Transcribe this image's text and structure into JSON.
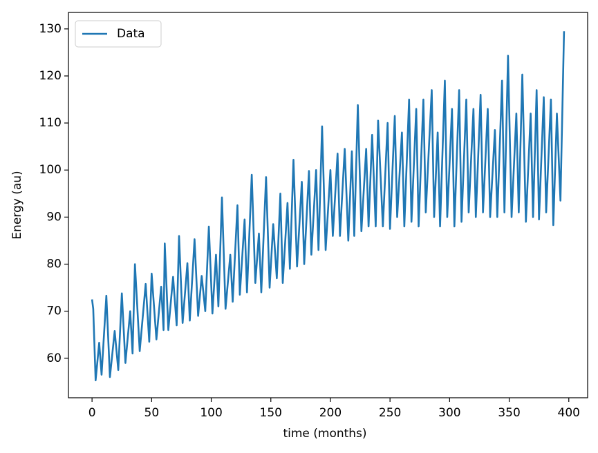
{
  "chart_data": {
    "type": "line",
    "xlabel": "time (months)",
    "ylabel": "Energy (au)",
    "x": [
      0,
      1,
      3,
      6,
      8,
      12,
      15,
      19,
      22,
      25,
      28,
      32,
      34,
      36,
      40,
      45,
      48,
      50,
      54,
      58,
      60,
      61,
      64,
      68,
      71,
      73,
      76,
      80,
      82,
      86,
      89,
      92,
      95,
      98,
      101,
      104,
      106,
      109,
      112,
      116,
      118,
      122,
      124,
      128,
      130,
      134,
      137,
      140,
      142,
      146,
      149,
      152,
      155,
      158,
      160,
      164,
      166,
      169,
      172,
      176,
      178,
      182,
      184,
      188,
      190,
      193,
      196,
      200,
      202,
      206,
      208,
      212,
      215,
      218,
      220,
      223,
      226,
      230,
      232,
      235,
      238,
      240,
      244,
      248,
      250,
      254,
      256,
      260,
      262,
      266,
      268,
      272,
      274,
      278,
      280,
      285,
      287,
      290,
      292,
      296,
      298,
      302,
      304,
      308,
      310,
      314,
      316,
      320,
      322,
      326,
      328,
      332,
      334,
      338,
      340,
      344,
      346,
      349,
      352,
      356,
      358,
      361,
      364,
      368,
      370,
      373,
      375,
      379,
      381,
      385,
      387,
      390,
      393,
      396
    ],
    "series": [
      {
        "name": "Data",
        "color": "#1f77b4",
        "values": [
          72.5,
          70.5,
          55.3,
          63.3,
          56.5,
          73.3,
          56,
          65.8,
          57.5,
          73.8,
          59,
          70,
          61,
          80,
          61.5,
          75.8,
          63.5,
          78,
          64,
          75.2,
          66,
          84.4,
          66,
          77.3,
          67,
          86,
          67.5,
          80.2,
          68,
          85.3,
          69,
          77.5,
          70,
          88,
          69.5,
          82,
          71,
          94.2,
          70.5,
          82,
          72,
          92.5,
          73.5,
          89.5,
          74,
          99,
          76,
          86.5,
          74,
          98.5,
          75,
          88.5,
          77,
          95,
          76,
          93,
          79,
          102.2,
          79.5,
          97.5,
          80,
          99.8,
          82,
          100,
          83,
          109.3,
          83,
          100,
          86,
          103.5,
          86,
          104.5,
          85,
          104,
          86,
          113.8,
          87,
          104.5,
          88,
          107.5,
          88,
          110.5,
          88,
          110,
          87.5,
          111.5,
          90,
          108,
          88,
          115,
          89,
          113,
          88,
          115,
          91,
          117,
          90,
          108,
          88,
          119,
          90,
          113,
          88,
          117,
          89,
          115,
          91,
          113,
          90,
          116,
          91,
          113,
          90,
          108.5,
          90,
          119,
          91,
          124.3,
          90,
          112,
          91,
          120.3,
          89,
          112,
          90,
          117,
          89.5,
          115.5,
          91,
          115,
          88.3,
          112,
          93.5,
          129.5
        ]
      }
    ],
    "xlim": [
      -19.8,
      415.8
    ],
    "ylim": [
      51.6,
      133.5
    ],
    "xticks": [
      0,
      50,
      100,
      150,
      200,
      250,
      300,
      350,
      400
    ],
    "yticks": [
      60,
      70,
      80,
      90,
      100,
      110,
      120,
      130
    ],
    "legend": "upper left"
  }
}
